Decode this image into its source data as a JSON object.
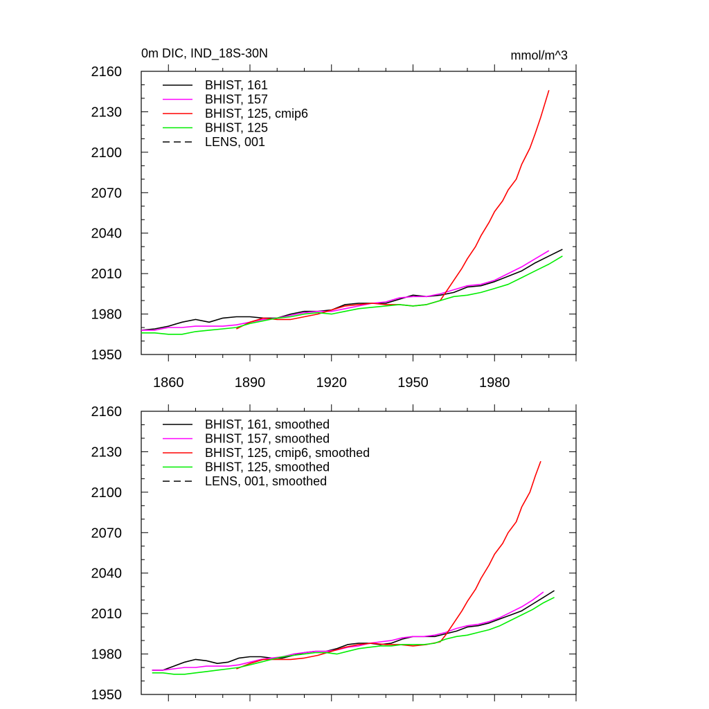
{
  "chart_data": [
    {
      "type": "line",
      "title": "0m DIC, IND_18S-30N",
      "units": "mmol/m^3",
      "xlim": [
        1850,
        2010
      ],
      "ylim": [
        1950,
        2160
      ],
      "x_ticks": [
        1860,
        1890,
        1920,
        1950,
        1980
      ],
      "y_ticks": [
        1950,
        1980,
        2010,
        2040,
        2070,
        2100,
        2130,
        2160
      ],
      "grid": false,
      "legend_position": "top-left",
      "series": [
        {
          "name": "BHIST, 161",
          "color": "#000000",
          "dash": false,
          "x": [
            1850,
            1855,
            1860,
            1865,
            1870,
            1875,
            1880,
            1885,
            1890,
            1895,
            1900,
            1905,
            1910,
            1915,
            1920,
            1925,
            1930,
            1935,
            1940,
            1945,
            1950,
            1955,
            1960,
            1965,
            1970,
            1975,
            1980,
            1985,
            1990,
            1995,
            2000,
            2005
          ],
          "y": [
            1968,
            1969,
            1971,
            1974,
            1976,
            1974,
            1977,
            1978,
            1978,
            1977,
            1977,
            1980,
            1982,
            1982,
            1983,
            1987,
            1988,
            1988,
            1988,
            1991,
            1994,
            1993,
            1994,
            1996,
            2000,
            2001,
            2004,
            2008,
            2012,
            2018,
            2023,
            2028
          ]
        },
        {
          "name": "BHIST, 157",
          "color": "#ff00ff",
          "dash": false,
          "x": [
            1850,
            1855,
            1860,
            1865,
            1870,
            1875,
            1880,
            1885,
            1890,
            1895,
            1900,
            1905,
            1910,
            1915,
            1920,
            1925,
            1930,
            1935,
            1940,
            1945,
            1950,
            1955,
            1960,
            1965,
            1970,
            1975,
            1980,
            1985,
            1990,
            1995,
            2000
          ],
          "y": [
            1968,
            1968,
            1970,
            1970,
            1971,
            1971,
            1971,
            1972,
            1974,
            1976,
            1977,
            1979,
            1981,
            1982,
            1982,
            1984,
            1986,
            1988,
            1989,
            1992,
            1993,
            1993,
            1995,
            1998,
            2001,
            2002,
            2005,
            2010,
            2015,
            2021,
            2027
          ]
        },
        {
          "name": "BHIST, 125, cmip6",
          "color": "#ff0000",
          "dash": false,
          "x": [
            1885,
            1890,
            1895,
            1900,
            1905,
            1910,
            1915,
            1920,
            1925,
            1930,
            1935,
            1940,
            1945,
            1950,
            1955,
            1960,
            1962,
            1965,
            1968,
            1970,
            1973,
            1975,
            1978,
            1980,
            1983,
            1985,
            1988,
            1990,
            1993,
            1995,
            1997,
            2000
          ],
          "y": [
            1969,
            1974,
            1977,
            1976,
            1976,
            1978,
            1980,
            1983,
            1986,
            1987,
            1988,
            1987,
            1987,
            1986,
            1987,
            1990,
            1996,
            2005,
            2014,
            2021,
            2030,
            2038,
            2048,
            2056,
            2064,
            2072,
            2080,
            2091,
            2103,
            2114,
            2126,
            2146
          ]
        },
        {
          "name": "BHIST, 125",
          "color": "#00ee00",
          "dash": false,
          "x": [
            1850,
            1855,
            1860,
            1865,
            1870,
            1875,
            1880,
            1885,
            1890,
            1895,
            1900,
            1905,
            1910,
            1915,
            1920,
            1925,
            1930,
            1935,
            1940,
            1945,
            1950,
            1955,
            1960,
            1965,
            1970,
            1975,
            1980,
            1985,
            1990,
            1995,
            2000,
            2005
          ],
          "y": [
            1966,
            1966,
            1965,
            1965,
            1967,
            1968,
            1969,
            1970,
            1973,
            1975,
            1977,
            1978,
            1980,
            1981,
            1980,
            1982,
            1984,
            1985,
            1986,
            1987,
            1986,
            1987,
            1990,
            1993,
            1994,
            1996,
            1999,
            2002,
            2007,
            2012,
            2017,
            2023
          ]
        },
        {
          "name": "LENS, 001",
          "color": "#000000",
          "dash": true,
          "x": [],
          "y": []
        }
      ]
    },
    {
      "type": "line",
      "xlim": [
        1850,
        2010
      ],
      "ylim": [
        1950,
        2160
      ],
      "y_ticks": [
        1950,
        1980,
        2010,
        2040,
        2070,
        2100,
        2130,
        2160
      ],
      "grid": false,
      "legend_position": "top-left",
      "series": [
        {
          "name": "BHIST, 161, smoothed",
          "color": "#000000",
          "dash": false,
          "x": [
            1854,
            1858,
            1862,
            1866,
            1870,
            1874,
            1878,
            1882,
            1886,
            1890,
            1894,
            1898,
            1902,
            1906,
            1910,
            1914,
            1918,
            1922,
            1926,
            1930,
            1934,
            1938,
            1942,
            1946,
            1950,
            1954,
            1958,
            1962,
            1966,
            1970,
            1974,
            1978,
            1982,
            1986,
            1990,
            1994,
            1998,
            2002
          ],
          "y": [
            1968,
            1968,
            1971,
            1974,
            1976,
            1975,
            1973,
            1974,
            1977,
            1978,
            1978,
            1977,
            1977,
            1979,
            1981,
            1982,
            1982,
            1984,
            1987,
            1988,
            1988,
            1987,
            1988,
            1991,
            1993,
            1993,
            1993,
            1995,
            1997,
            2000,
            2001,
            2003,
            2006,
            2009,
            2012,
            2017,
            2022,
            2027
          ]
        },
        {
          "name": "BHIST, 157, smoothed",
          "color": "#ff00ff",
          "dash": false,
          "x": [
            1854,
            1858,
            1862,
            1866,
            1870,
            1874,
            1878,
            1882,
            1886,
            1890,
            1894,
            1898,
            1902,
            1906,
            1910,
            1914,
            1918,
            1922,
            1926,
            1930,
            1934,
            1938,
            1942,
            1946,
            1950,
            1954,
            1958,
            1962,
            1966,
            1970,
            1974,
            1978,
            1982,
            1986,
            1990,
            1994,
            1998
          ],
          "y": [
            1968,
            1968,
            1969,
            1970,
            1970,
            1971,
            1971,
            1971,
            1972,
            1974,
            1976,
            1977,
            1978,
            1980,
            1981,
            1982,
            1982,
            1983,
            1985,
            1986,
            1988,
            1989,
            1990,
            1992,
            1993,
            1993,
            1994,
            1996,
            1999,
            2001,
            2002,
            2004,
            2007,
            2011,
            2015,
            2020,
            2026
          ]
        },
        {
          "name": "BHIST, 125, cmip6, smoothed",
          "color": "#ff0000",
          "dash": false,
          "x": [
            1885,
            1890,
            1895,
            1900,
            1905,
            1910,
            1915,
            1920,
            1925,
            1930,
            1935,
            1940,
            1945,
            1950,
            1955,
            1960,
            1962,
            1965,
            1968,
            1970,
            1973,
            1975,
            1978,
            1980,
            1983,
            1985,
            1988,
            1990,
            1993,
            1995,
            1997
          ],
          "y": [
            1969,
            1973,
            1976,
            1976,
            1976,
            1977,
            1979,
            1982,
            1985,
            1987,
            1988,
            1987,
            1987,
            1986,
            1987,
            1989,
            1994,
            2003,
            2012,
            2019,
            2028,
            2036,
            2046,
            2054,
            2062,
            2070,
            2078,
            2089,
            2100,
            2112,
            2123
          ]
        },
        {
          "name": "BHIST, 125, smoothed",
          "color": "#00ee00",
          "dash": false,
          "x": [
            1854,
            1858,
            1862,
            1866,
            1870,
            1874,
            1878,
            1882,
            1886,
            1890,
            1894,
            1898,
            1902,
            1906,
            1910,
            1914,
            1918,
            1922,
            1926,
            1930,
            1934,
            1938,
            1942,
            1946,
            1950,
            1954,
            1958,
            1962,
            1966,
            1970,
            1974,
            1978,
            1982,
            1986,
            1990,
            1994,
            1998,
            2002
          ],
          "y": [
            1966,
            1966,
            1965,
            1965,
            1966,
            1967,
            1968,
            1969,
            1970,
            1972,
            1974,
            1976,
            1978,
            1979,
            1980,
            1981,
            1981,
            1980,
            1982,
            1984,
            1985,
            1986,
            1986,
            1987,
            1987,
            1987,
            1988,
            1991,
            1993,
            1994,
            1996,
            1998,
            2001,
            2005,
            2009,
            2013,
            2018,
            2022
          ]
        },
        {
          "name": "LENS, 001, smoothed",
          "color": "#000000",
          "dash": true,
          "x": [],
          "y": []
        }
      ]
    }
  ]
}
